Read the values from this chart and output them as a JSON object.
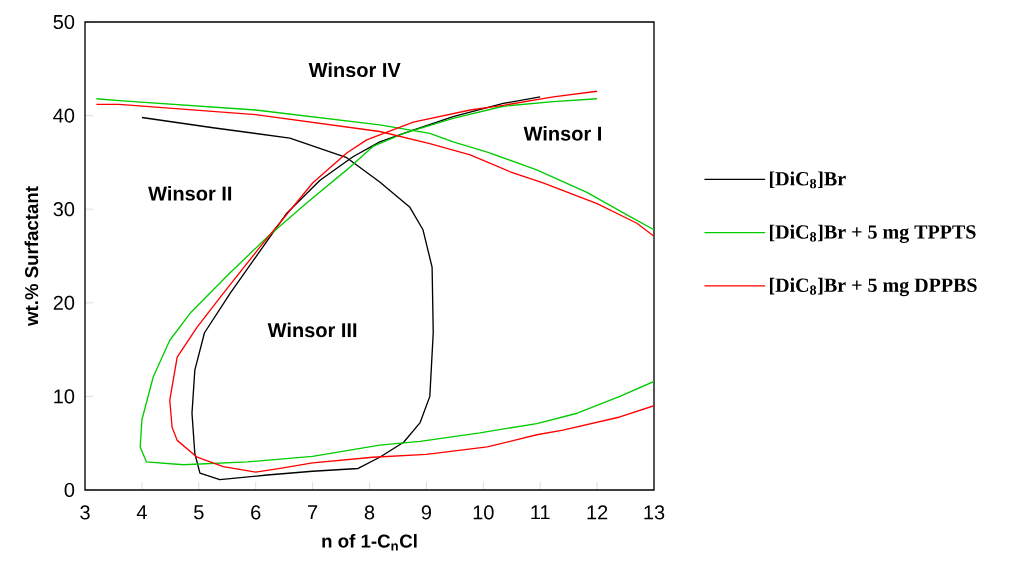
{
  "chart_data": {
    "type": "line",
    "xlabel": "n of 1-C$_{n}$Cl",
    "ylabel": "wt.% Surfactant",
    "xlim": [
      3,
      13
    ],
    "ylim": [
      0,
      50
    ],
    "xticks": [
      3,
      4,
      5,
      6,
      7,
      8,
      9,
      10,
      11,
      12,
      13
    ],
    "yticks": [
      0,
      10,
      20,
      30,
      40,
      50
    ],
    "legend": "right",
    "line_style": "solid",
    "series": [
      {
        "name": "[DiC$_{8}$]Br",
        "color": "#000000",
        "x": [
          4.0,
          5.25,
          6.6,
          7.6,
          8.18,
          8.71,
          8.94,
          9.1,
          9.12,
          9.06,
          8.89,
          8.6,
          8.18,
          7.8,
          7.0,
          6.2,
          5.37,
          5.02,
          4.93,
          4.88,
          4.93,
          5.1,
          5.55,
          6.13,
          6.55,
          7.13,
          7.71,
          8.18,
          8.6,
          9.47,
          10.35,
          11.0
        ],
        "values": [
          39.8,
          38.7,
          37.6,
          35.5,
          32.9,
          30.2,
          27.8,
          23.8,
          16.8,
          10.0,
          7.2,
          5.1,
          3.5,
          2.3,
          2.0,
          1.6,
          1.1,
          1.8,
          3.9,
          8.2,
          12.8,
          16.8,
          21.0,
          26.0,
          29.6,
          33.1,
          35.6,
          37.2,
          38.1,
          39.9,
          41.3,
          42.0
        ]
      },
      {
        "name": "[DiC$_{8}$]Br + 5 mg TPPTS",
        "color": "#00cc00",
        "x": [
          3.2,
          3.6,
          6.0,
          8.18,
          9.06,
          9.47,
          10.07,
          10.94,
          11.82,
          12.58,
          13.0,
          null,
          13.0,
          12.4,
          11.65,
          10.94,
          9.94,
          8.89,
          8.18,
          7.0,
          5.85,
          4.73,
          4.08,
          3.97,
          4.0,
          4.2,
          4.49,
          4.85,
          5.55,
          6.2,
          6.9,
          7.6,
          8.06,
          8.6,
          9.47,
          10.35,
          11.23,
          12.0
        ],
        "values": [
          41.8,
          41.6,
          40.6,
          39.0,
          38.1,
          37.2,
          36.1,
          34.2,
          31.8,
          29.2,
          27.8,
          null,
          11.6,
          10.0,
          8.2,
          7.1,
          6.1,
          5.2,
          4.8,
          3.6,
          3.0,
          2.7,
          3.0,
          4.6,
          7.5,
          12.1,
          16.0,
          18.9,
          23.2,
          27.0,
          30.7,
          34.2,
          36.7,
          38.1,
          39.7,
          41.0,
          41.5,
          41.8
        ]
      },
      {
        "name": "[DiC$_{8}$]Br + 5 mg DPPBS",
        "color": "#ff0000",
        "x": [
          3.2,
          3.6,
          6.0,
          8.18,
          9.06,
          9.77,
          10.47,
          11.05,
          12.0,
          12.7,
          13.0,
          null,
          13.0,
          12.4,
          11.4,
          10.94,
          10.07,
          9.0,
          8.06,
          7.0,
          6.43,
          6.0,
          5.43,
          4.97,
          4.62,
          4.53,
          4.49,
          4.62,
          4.97,
          5.43,
          6.08,
          7.0,
          7.6,
          7.95,
          8.77,
          9.77,
          10.35,
          11.23,
          12.0
        ],
        "values": [
          41.2,
          41.2,
          40.1,
          38.3,
          37.0,
          35.8,
          34.0,
          32.8,
          30.6,
          28.5,
          27.1,
          null,
          9.0,
          7.8,
          6.4,
          5.9,
          4.6,
          3.8,
          3.5,
          2.9,
          2.3,
          1.9,
          2.5,
          3.5,
          5.3,
          6.7,
          9.6,
          14.2,
          17.4,
          21.0,
          26.0,
          32.8,
          36.0,
          37.4,
          39.3,
          40.6,
          41.1,
          42.0,
          42.6
        ]
      }
    ],
    "annotations": [
      "Winsor IV",
      "Winsor I",
      "Winsor II",
      "Winsor III"
    ]
  }
}
